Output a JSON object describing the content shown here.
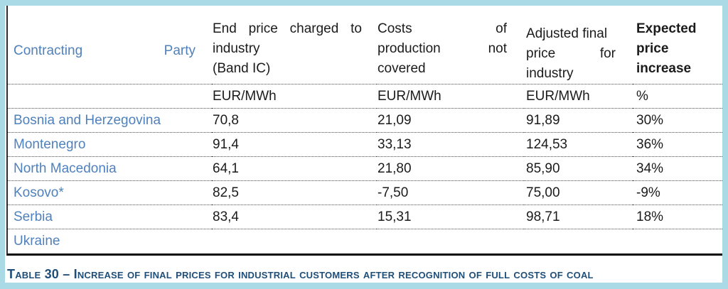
{
  "colors": {
    "frame_cyan": "#aadae6",
    "party_blue": "#4f81bd",
    "caption_navy": "#1f4e79",
    "body_text": "#1b1b1b"
  },
  "table": {
    "header": {
      "party_lines": [
        [
          "Contracting",
          "Party"
        ]
      ],
      "end_price_lines": [
        [
          "End",
          "price",
          "charged",
          "to"
        ],
        "industry",
        "(Band IC)"
      ],
      "costs_lines": [
        [
          "Costs",
          "of"
        ],
        [
          "production",
          "not"
        ],
        "covered"
      ],
      "adjusted_lines": [
        "Adjusted final",
        [
          "price",
          "for"
        ],
        "industry"
      ],
      "expected_lines": [
        "Expected",
        "price",
        "increase"
      ]
    },
    "units": {
      "party": "",
      "end_price": "EUR/MWh",
      "costs_not_covered": "EUR/MWh",
      "adjusted_price": "EUR/MWh",
      "expected_increase": "%"
    },
    "rows": [
      {
        "party": "Bosnia and Herzegovina",
        "end_price": "70,8",
        "costs_not_covered": "21,09",
        "adjusted_price": "91,89",
        "expected_increase": "30%"
      },
      {
        "party": "Montenegro",
        "end_price": "91,4",
        "costs_not_covered": "33,13",
        "adjusted_price": "124,53",
        "expected_increase": "36%"
      },
      {
        "party": "North Macedonia",
        "end_price": "64,1",
        "costs_not_covered": "21,80",
        "adjusted_price": "85,90",
        "expected_increase": "34%"
      },
      {
        "party": "Kosovo*",
        "end_price": "82,5",
        "costs_not_covered": "-7,50",
        "adjusted_price": "75,00",
        "expected_increase": "-9%"
      },
      {
        "party": "Serbia",
        "end_price": "83,4",
        "costs_not_covered": "15,31",
        "adjusted_price": "98,71",
        "expected_increase": "18%"
      },
      {
        "party": "Ukraine",
        "end_price": "",
        "costs_not_covered": "",
        "adjusted_price": "",
        "expected_increase": ""
      }
    ]
  },
  "caption": {
    "text": "Table 30 – Increase of final prices for industrial customers after recognition of full costs of coal"
  }
}
